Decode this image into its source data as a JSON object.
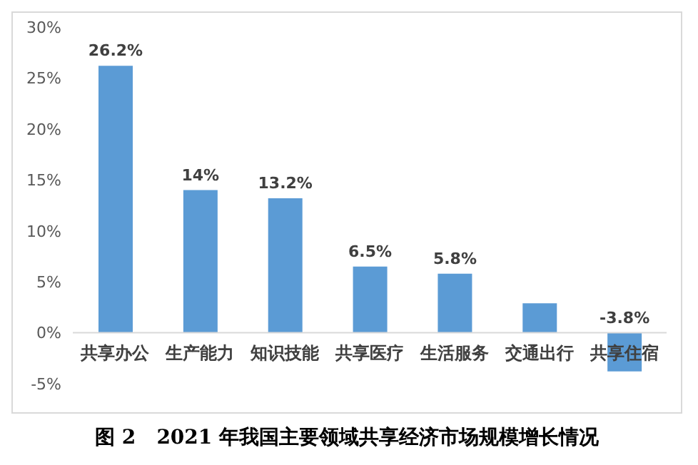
{
  "chart_data": {
    "type": "bar",
    "title": "图 2   2021 年我国主要领域共享经济市场规模增长情况",
    "categories": [
      "共享办公",
      "生产能力",
      "知识技能",
      "共享医疗",
      "生活服务",
      "交通出行",
      "共享住宿"
    ],
    "values": [
      26.2,
      14,
      13.2,
      6.5,
      5.8,
      2.9,
      -3.8
    ],
    "value_labels": [
      "26.2%",
      "14%",
      "13.2%",
      "6.5%",
      "5.8%",
      null,
      "-3.8%"
    ],
    "color": "#5b9bd5",
    "ylim": [
      -5,
      30
    ],
    "yticks": [
      {
        "value": -5,
        "label": "-5%"
      },
      {
        "value": 0,
        "label": "0%"
      },
      {
        "value": 5,
        "label": "5%"
      },
      {
        "value": 10,
        "label": "10%"
      },
      {
        "value": 15,
        "label": "15%"
      },
      {
        "value": 20,
        "label": "20%"
      },
      {
        "value": 25,
        "label": "25%"
      },
      {
        "value": 30,
        "label": "30%"
      }
    ],
    "grid": false,
    "legend": false
  }
}
